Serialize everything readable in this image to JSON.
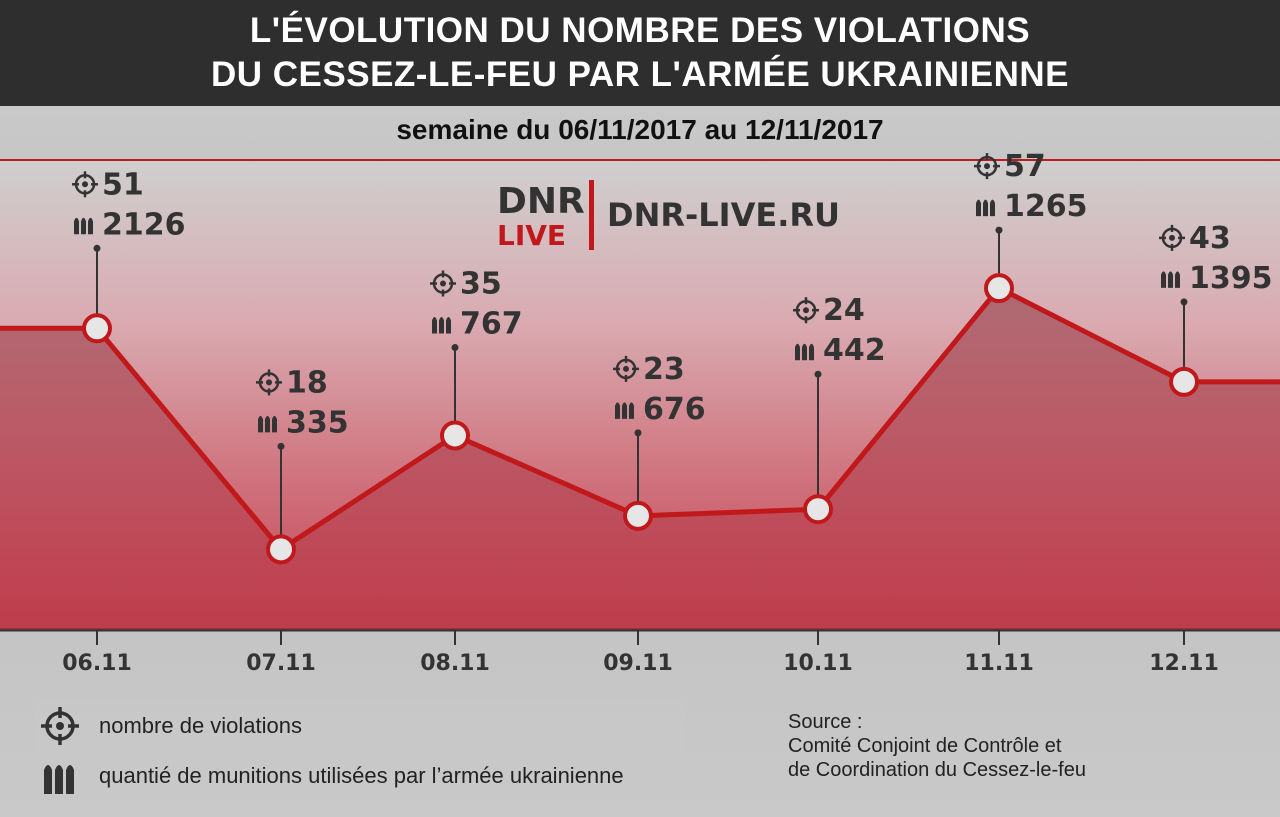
{
  "header": {
    "title_line1": "L'ÉVOLUTION DU NOMBRE DES VIOLATIONS",
    "title_line2": "DU CESSEZ-LE-FEU PAR L'ARMÉE UKRAINIENNE",
    "subtitle": "semaine du 06/11/2017 au 12/11/2017"
  },
  "logo": {
    "dnr": "DNR",
    "live": "LIVE",
    "url": "DNR-LIVE.RU"
  },
  "colors": {
    "line": "#c0181b",
    "header_bg": "#2e2e2e",
    "marker_fill": "#e6e6e6"
  },
  "chart_data": {
    "type": "line",
    "categories": [
      "06.11",
      "07.11",
      "08.11",
      "09.11",
      "10.11",
      "11.11",
      "12.11"
    ],
    "series": [
      {
        "name": "nombre de violations",
        "values": [
          51,
          18,
          35,
          23,
          24,
          57,
          43
        ]
      },
      {
        "name": "quantié de munitions utilisées par l’armée ukrainienne",
        "values": [
          2126,
          335,
          767,
          676,
          442,
          1265,
          1395
        ]
      }
    ],
    "plotted_series": "nombre de violations",
    "icons": [
      "crosshair-icon",
      "ammo-icon"
    ]
  },
  "legend": {
    "items": [
      {
        "icon": "crosshair-icon",
        "label": "nombre de violations"
      },
      {
        "icon": "ammo-icon",
        "label": "quantié de munitions utilisées par l’armée ukrainienne"
      }
    ]
  },
  "source": {
    "line1": "Source :",
    "line2": "Comité Conjoint de Contrôle et",
    "line3": "de Coordination du Cessez-le-feu"
  }
}
